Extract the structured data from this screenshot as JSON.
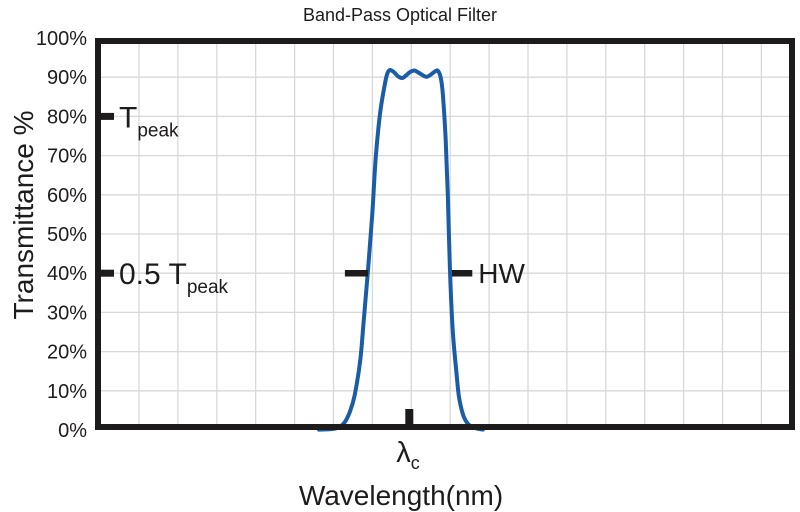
{
  "chart_data": {
    "type": "line",
    "title": "Band-Pass Optical Filter",
    "xlabel": "Wavelength(nm)",
    "ylabel": "Transmittance %",
    "ylim": [
      0,
      100
    ],
    "grid": true,
    "y_ticks": [
      {
        "value": 100,
        "label": "100%"
      },
      {
        "value": 90,
        "label": "90%"
      },
      {
        "value": 80,
        "label": "80%"
      },
      {
        "value": 70,
        "label": "70%"
      },
      {
        "value": 60,
        "label": "60%"
      },
      {
        "value": 50,
        "label": "50%"
      },
      {
        "value": 40,
        "label": "40%"
      },
      {
        "value": 30,
        "label": "30%"
      },
      {
        "value": 20,
        "label": "20%"
      },
      {
        "value": 10,
        "label": "10%"
      },
      {
        "value": 0,
        "label": "0%"
      }
    ],
    "series": [
      {
        "name": "Transmittance",
        "color": "#1b5ca7",
        "points_xfrac_ypct": [
          [
            0.32,
            0.1
          ],
          [
            0.344,
            0.4
          ],
          [
            0.356,
            1.8
          ],
          [
            0.364,
            4.6
          ],
          [
            0.371,
            8.9
          ],
          [
            0.379,
            17.9
          ],
          [
            0.384,
            28.1
          ],
          [
            0.39,
            40.8
          ],
          [
            0.396,
            54.8
          ],
          [
            0.401,
            69.4
          ],
          [
            0.407,
            80.4
          ],
          [
            0.413,
            87.2
          ],
          [
            0.417,
            90.6
          ],
          [
            0.421,
            91.8
          ],
          [
            0.427,
            91.3
          ],
          [
            0.433,
            90.2
          ],
          [
            0.439,
            89.8
          ],
          [
            0.444,
            90.4
          ],
          [
            0.45,
            91.3
          ],
          [
            0.456,
            91.7
          ],
          [
            0.461,
            91.3
          ],
          [
            0.469,
            90.4
          ],
          [
            0.474,
            90.1
          ],
          [
            0.48,
            90.7
          ],
          [
            0.486,
            91.5
          ],
          [
            0.49,
            91.6
          ],
          [
            0.494,
            89.8
          ],
          [
            0.497,
            85.5
          ],
          [
            0.501,
            74.0
          ],
          [
            0.504,
            60.0
          ],
          [
            0.507,
            41.3
          ],
          [
            0.511,
            25.5
          ],
          [
            0.516,
            15.3
          ],
          [
            0.52,
            8.4
          ],
          [
            0.526,
            3.8
          ],
          [
            0.533,
            1.5
          ],
          [
            0.541,
            0.6
          ],
          [
            0.554,
            0.1
          ]
        ]
      }
    ],
    "annotations": {
      "tpeak": {
        "main": "T",
        "sub": "peak",
        "level_pct": 80
      },
      "half_peak": {
        "main": "0.5 T",
        "sub": "peak",
        "level_pct": 40
      },
      "hw": {
        "label": "HW",
        "level_pct": 40,
        "left_tick_xfrac": [
          0.357,
          0.39
        ],
        "right_tick_xfrac": [
          0.51,
          0.539
        ]
      },
      "lambda_c": {
        "main": "λ",
        "sub": "c",
        "x_frac": 0.449
      }
    },
    "colors": {
      "curve": "#1b5ca7",
      "axis": "#1e1b1c",
      "grid": "#d8d8d8",
      "background": "#ffffff",
      "text": "#1e1b1c"
    }
  }
}
